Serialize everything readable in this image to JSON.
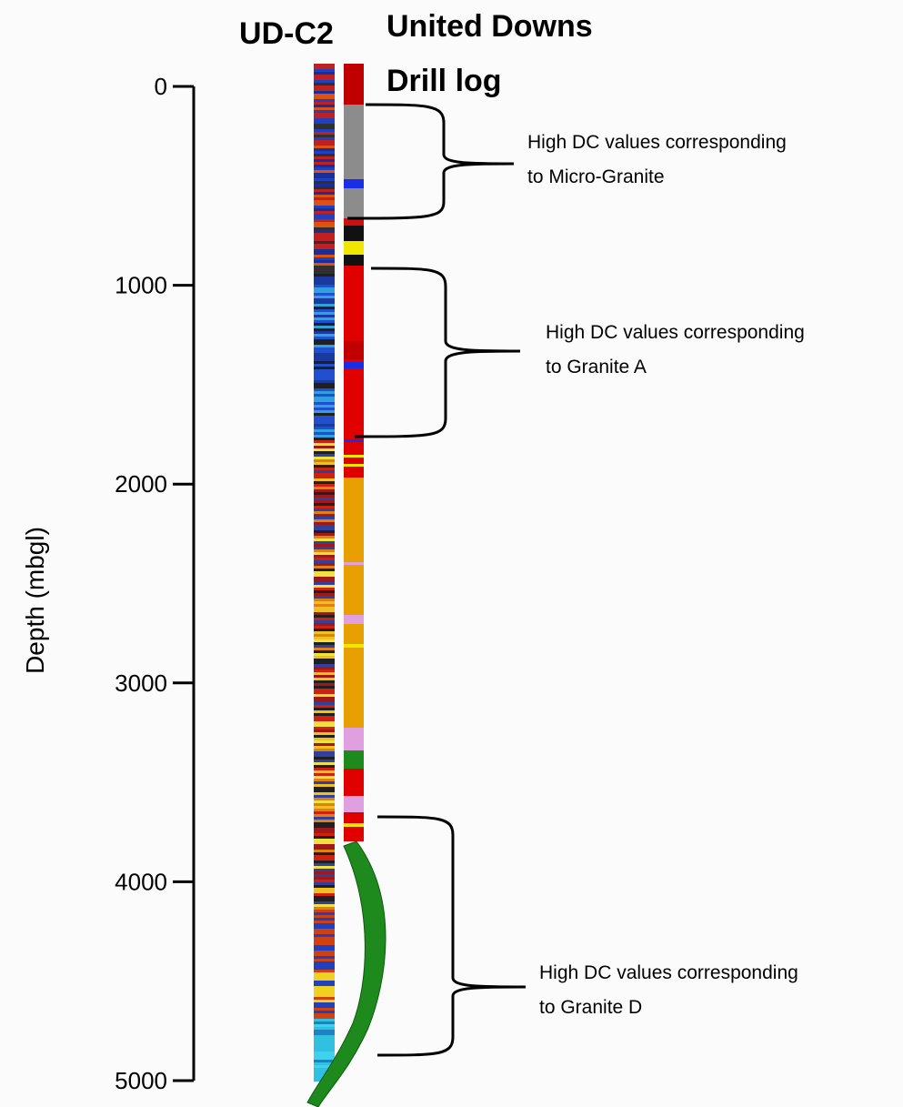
{
  "log_title": "UD-C2",
  "drill_log_title": [
    "United Downs",
    "Drill log"
  ],
  "axis": {
    "label": "Depth (mbgl)",
    "ticks": [
      0,
      1000,
      2000,
      3000,
      4000,
      5000
    ]
  },
  "annotations": [
    {
      "lines": [
        "High DC values corresponding",
        "to Micro-Granite"
      ]
    },
    {
      "lines": [
        "High DC values corresponding",
        "to Granite A"
      ]
    },
    {
      "lines": [
        "High DC values corresponding",
        "to Granite D"
      ]
    }
  ]
}
